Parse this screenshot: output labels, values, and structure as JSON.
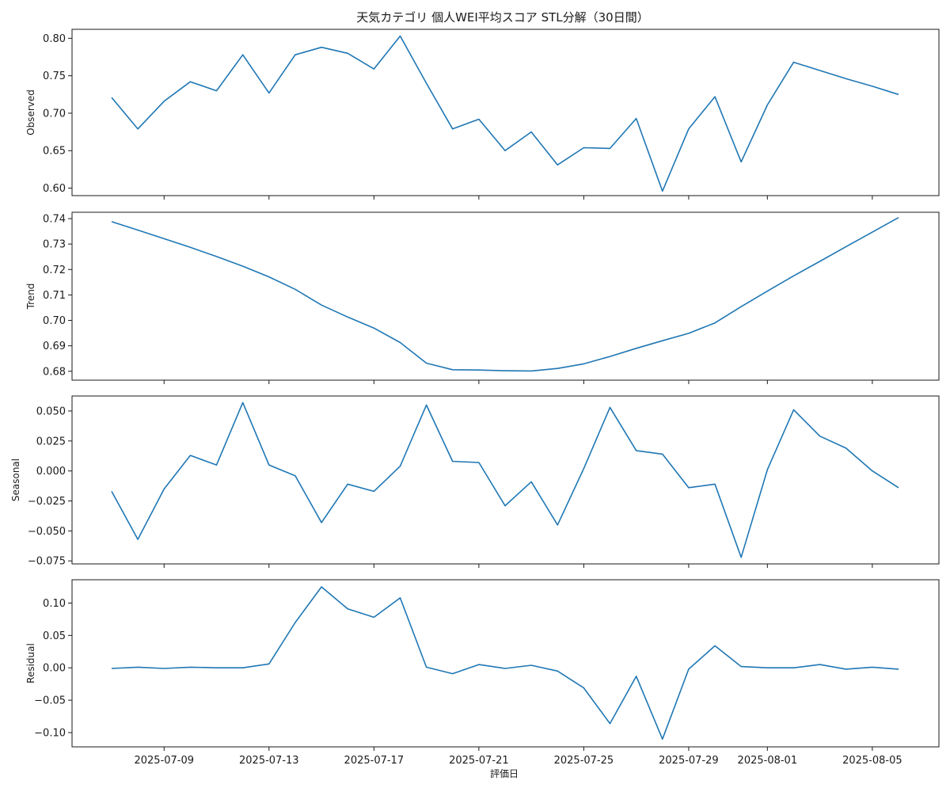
{
  "chart_data": {
    "type": "line",
    "title": "天気カテゴリ 個人WEI平均スコア STL分解（30日間）",
    "xlabel": "評価日",
    "line_color": "#1f77b4",
    "x": [
      "2025-07-07",
      "2025-07-08",
      "2025-07-09",
      "2025-07-10",
      "2025-07-11",
      "2025-07-12",
      "2025-07-13",
      "2025-07-14",
      "2025-07-15",
      "2025-07-16",
      "2025-07-17",
      "2025-07-18",
      "2025-07-19",
      "2025-07-20",
      "2025-07-21",
      "2025-07-22",
      "2025-07-23",
      "2025-07-24",
      "2025-07-25",
      "2025-07-26",
      "2025-07-27",
      "2025-07-28",
      "2025-07-29",
      "2025-07-30",
      "2025-07-31",
      "2025-08-01",
      "2025-08-02",
      "2025-08-06"
    ],
    "x_ticks": [
      "2025-07-09",
      "2025-07-13",
      "2025-07-17",
      "2025-07-21",
      "2025-07-25",
      "2025-07-29",
      "2025-08-01",
      "2025-08-05"
    ],
    "panels": [
      {
        "ylabel": "Observed",
        "ylim": [
          0.59,
          0.812
        ],
        "yticks": [
          "0.60",
          "0.65",
          "0.70",
          "0.75",
          "0.80"
        ],
        "values": [
          0.721,
          0.679,
          0.716,
          0.742,
          0.73,
          0.778,
          0.727,
          0.778,
          0.788,
          0.78,
          0.759,
          0.803,
          0.74,
          0.679,
          0.692,
          0.65,
          0.675,
          0.631,
          0.654,
          0.653,
          0.693,
          0.596,
          0.679,
          0.722,
          0.635,
          0.711,
          0.768,
          0.725
        ]
      },
      {
        "ylabel": "Trend",
        "ylim": [
          0.6765,
          0.7425
        ],
        "yticks": [
          "0.68",
          "0.69",
          "0.70",
          "0.71",
          "0.72",
          "0.73",
          "0.74"
        ],
        "values": [
          0.7388,
          0.7355,
          0.7321,
          0.7287,
          0.7251,
          0.7213,
          0.7171,
          0.7122,
          0.706,
          0.7013,
          0.697,
          0.6913,
          0.6832,
          0.6806,
          0.6805,
          0.6802,
          0.6801,
          0.6811,
          0.6829,
          0.6858,
          0.689,
          0.692,
          0.6949,
          0.699,
          0.7054,
          0.7115,
          0.7175,
          0.7404
        ]
      },
      {
        "ylabel": "Seasonal",
        "ylim": [
          -0.0775,
          0.0625
        ],
        "yticks": [
          "−0.075",
          "−0.050",
          "−0.025",
          "0.000",
          "0.025",
          "0.050"
        ],
        "values": [
          -0.017,
          -0.057,
          -0.015,
          0.013,
          0.005,
          0.057,
          0.005,
          -0.004,
          -0.043,
          -0.011,
          -0.017,
          0.004,
          0.055,
          0.008,
          0.007,
          -0.029,
          -0.009,
          -0.045,
          0.002,
          0.053,
          0.017,
          0.014,
          -0.014,
          -0.011,
          -0.072,
          0.001,
          0.051,
          -0.014
        ]
      },
      {
        "ylabel": "Residual",
        "ylim": [
          -0.122,
          0.136
        ],
        "yticks": [
          "−0.10",
          "−0.05",
          "0.00",
          "0.05",
          "0.10"
        ],
        "values": [
          -0.001,
          0.001,
          -0.001,
          0.001,
          0.0,
          0.0,
          0.006,
          0.07,
          0.125,
          0.091,
          0.078,
          0.108,
          0.001,
          -0.009,
          0.005,
          -0.001,
          0.004,
          -0.005,
          -0.031,
          -0.086,
          -0.013,
          -0.11,
          -0.002,
          0.034,
          0.002,
          0.0,
          0.0,
          -0.002
        ]
      }
    ],
    "extra_points": {
      "x": [
        "2025-08-03",
        "2025-08-04",
        "2025-08-05"
      ],
      "observed": [
        0.757,
        0.746,
        0.736
      ],
      "trend": [
        0.7232,
        0.729,
        0.7347
      ],
      "seasonal": [
        0.029,
        0.019,
        0.0
      ],
      "residual": [
        0.005,
        -0.002,
        0.001
      ]
    }
  }
}
